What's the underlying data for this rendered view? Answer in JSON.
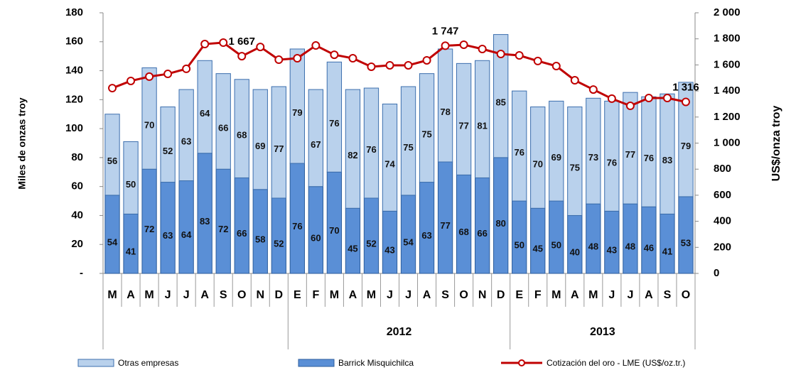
{
  "chart_data": {
    "type": "bar_line",
    "y_label": "Miles de onzas troy",
    "y2_label": "US$/onza troy",
    "category_groups": [
      {
        "label": null,
        "categories": [
          "M",
          "A",
          "M",
          "J",
          "J",
          "A",
          "S",
          "O",
          "N",
          "D"
        ]
      },
      {
        "label": "2012",
        "categories": [
          "E",
          "F",
          "M",
          "A",
          "M",
          "J",
          "J",
          "A",
          "S",
          "O",
          "N",
          "D"
        ]
      },
      {
        "label": "2013",
        "categories": [
          "E",
          "F",
          "M",
          "A",
          "M",
          "J",
          "J",
          "A",
          "S",
          "O"
        ]
      }
    ],
    "series": [
      {
        "name": "Otras empresas",
        "type": "bar",
        "color": "#b9d1ec",
        "stroke": "#3d6fae",
        "values": [
          56,
          50,
          70,
          52,
          63,
          64,
          66,
          68,
          69,
          77,
          79,
          67,
          76,
          82,
          76,
          74,
          75,
          75,
          78,
          77,
          81,
          85,
          76,
          70,
          69,
          75,
          73,
          76,
          77,
          76,
          83,
          79
        ]
      },
      {
        "name": "Barrick Misquichilca",
        "type": "bar",
        "color": "#5a8fd6",
        "stroke": "#2c5d9c",
        "values": [
          54,
          41,
          72,
          63,
          64,
          83,
          72,
          66,
          58,
          52,
          76,
          60,
          70,
          45,
          52,
          43,
          54,
          63,
          77,
          68,
          66,
          80,
          50,
          45,
          50,
          40,
          48,
          43,
          48,
          46,
          41,
          53
        ]
      },
      {
        "name": "Cotización del oro - LME (US$/oz.tr.)",
        "type": "line",
        "axis": "y2",
        "color": "#c00000",
        "values": [
          1422,
          1477,
          1510,
          1531,
          1570,
          1760,
          1771,
          1667,
          1738,
          1640,
          1651,
          1749,
          1678,
          1651,
          1586,
          1597,
          1597,
          1635,
          1747,
          1755,
          1722,
          1684,
          1673,
          1630,
          1591,
          1482,
          1411,
          1341,
          1286,
          1346,
          1346,
          1316
        ],
        "value_labels": [
          null,
          null,
          null,
          null,
          null,
          null,
          null,
          "1 667",
          null,
          null,
          null,
          null,
          null,
          null,
          null,
          null,
          null,
          null,
          "1 747",
          null,
          null,
          null,
          null,
          null,
          null,
          null,
          null,
          null,
          null,
          null,
          null,
          "1 316"
        ]
      }
    ],
    "ylim": [
      0,
      180
    ],
    "yticks": [
      {
        "value": 0,
        "label": "-"
      },
      20,
      40,
      60,
      80,
      100,
      120,
      140,
      160,
      180
    ],
    "y2lim": [
      0,
      2000
    ],
    "y2ticks": [
      0,
      200,
      400,
      600,
      800,
      {
        "value": 1000,
        "label": "1 000"
      },
      {
        "value": 1200,
        "label": "1 200"
      },
      {
        "value": 1400,
        "label": "1 400"
      },
      {
        "value": 1600,
        "label": "1 600"
      },
      {
        "value": 1800,
        "label": "1 800"
      },
      {
        "value": 2000,
        "label": "2 000"
      }
    ],
    "legend": "bottom"
  }
}
